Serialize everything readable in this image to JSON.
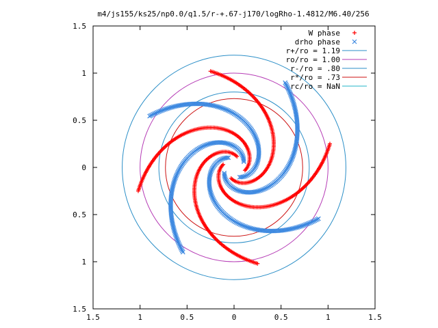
{
  "chart_data": {
    "type": "scatter",
    "title": "m4/js155/ks25/np0.0/q1.5/r-+.67-j170/logRho-1.4812/M6.40/256",
    "xlabel": "",
    "ylabel": "",
    "xlim": [
      -1.5,
      1.5
    ],
    "ylim": [
      -1.5,
      1.5
    ],
    "xticks": [
      -1.5,
      -1,
      -0.5,
      0,
      0.5,
      1,
      1.5
    ],
    "xtick_labels": [
      "1.5",
      "1",
      "0.5",
      "0",
      "0.5",
      "1",
      "1.5"
    ],
    "yticks": [
      1.5,
      1,
      0.5,
      0,
      -0.5,
      -1,
      -1.5
    ],
    "ytick_labels": [
      "1.5",
      "1",
      "0.5",
      "0",
      "0.5",
      "1",
      "1.5"
    ],
    "grid": false,
    "legend_position": "top-right",
    "series": [
      {
        "name": "W phase",
        "marker": "+",
        "color": "#ff0000",
        "arms": 4,
        "phase_deg": 165
      },
      {
        "name": "drho phase",
        "marker": "x",
        "color": "#3c88e0",
        "arms": 4,
        "phase_deg": 120
      }
    ],
    "circles": [
      {
        "name": "r+/ro = 1.19",
        "radius": 1.19,
        "color": "#2a8ec7"
      },
      {
        "name": "ro/ro = 1.00",
        "radius": 1.0,
        "color": "#b53ab5"
      },
      {
        "name": "r-/ro = .80",
        "radius": 0.8,
        "color": "#2a8ec7"
      },
      {
        "name": "r*/ro = .73",
        "radius": 0.73,
        "color": "#cc1111"
      },
      {
        "name": "rc/ro = NaN",
        "radius": null,
        "color": "#22b5c8"
      }
    ]
  }
}
